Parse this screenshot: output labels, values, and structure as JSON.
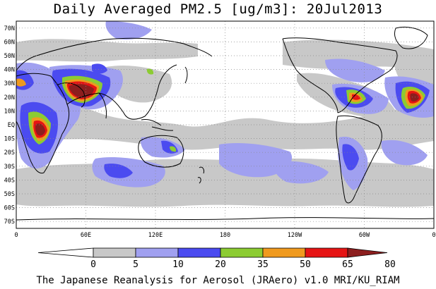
{
  "title": "Daily Averaged PM2.5 [ug/m3]: 20Jul2013",
  "footer": "The Japanese Reanalysis for Aerosol (JRAero) v1.0 MRI/KU_RIAM",
  "map": {
    "lon_range": [
      0,
      360
    ],
    "lat_range": [
      -75,
      75
    ],
    "lat_labels": [
      "70N",
      "60N",
      "50N",
      "40N",
      "30N",
      "20N",
      "10N",
      "EQ",
      "10S",
      "20S",
      "30S",
      "40S",
      "50S",
      "60S",
      "70S"
    ],
    "lat_values": [
      70,
      60,
      50,
      40,
      30,
      20,
      10,
      0,
      -10,
      -20,
      -30,
      -40,
      -50,
      -60,
      -70
    ],
    "lon_labels": [
      "0",
      "60E",
      "120E",
      "180",
      "120W",
      "60W",
      "0"
    ],
    "lon_values": [
      0,
      60,
      120,
      180,
      240,
      300,
      360
    ],
    "grid": "dotted"
  },
  "legend": {
    "labels": [
      "0",
      "5",
      "10",
      "20",
      "35",
      "50",
      "65",
      "80"
    ],
    "colors": [
      "#ffffff",
      "#c8c8c8",
      "#a0a0f0",
      "#4b4bf0",
      "#8ccc32",
      "#f09a1e",
      "#e61414",
      "#8c1e1e"
    ]
  },
  "colors": {
    "c5": "#c8c8c8",
    "c10": "#a0a0f0",
    "c20": "#4b4bf0",
    "c35": "#8ccc32",
    "c50": "#f09a1e",
    "c65": "#e61414",
    "c80": "#8c1e1e",
    "coast": "#000000"
  }
}
